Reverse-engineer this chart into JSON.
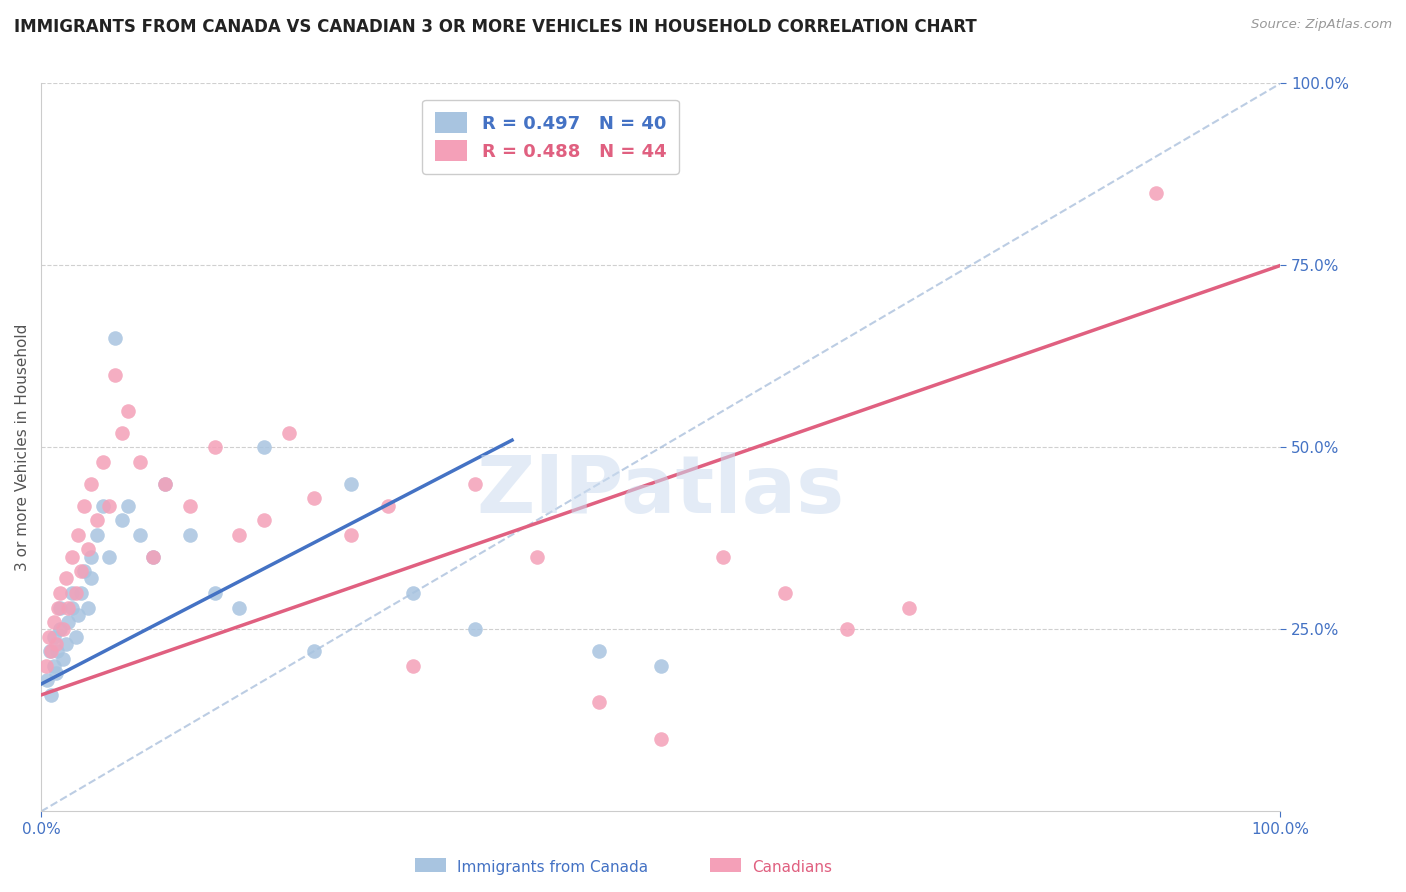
{
  "title": "IMMIGRANTS FROM CANADA VS CANADIAN 3 OR MORE VEHICLES IN HOUSEHOLD CORRELATION CHART",
  "source": "Source: ZipAtlas.com",
  "ylabel": "3 or more Vehicles in Household",
  "watermark": "ZIPatlas",
  "blue_R": 0.497,
  "blue_N": 40,
  "pink_R": 0.488,
  "pink_N": 44,
  "blue_color": "#a8c4e0",
  "pink_color": "#f4a0b8",
  "blue_line_color": "#4472c4",
  "pink_line_color": "#e06080",
  "diagonal_color": "#a0b8d8",
  "title_color": "#222222",
  "axis_label_color": "#555555",
  "tick_color": "#4472c4",
  "xlim": [
    0,
    1
  ],
  "ylim": [
    0,
    1
  ],
  "ytick_positions": [
    0.25,
    0.5,
    0.75,
    1.0
  ],
  "ytick_labels": [
    "25.0%",
    "50.0%",
    "75.0%",
    "100.0%"
  ],
  "blue_scatter_x": [
    0.005,
    0.007,
    0.008,
    0.01,
    0.01,
    0.012,
    0.013,
    0.015,
    0.015,
    0.018,
    0.02,
    0.022,
    0.025,
    0.025,
    0.028,
    0.03,
    0.032,
    0.035,
    0.038,
    0.04,
    0.04,
    0.045,
    0.05,
    0.055,
    0.06,
    0.065,
    0.07,
    0.08,
    0.09,
    0.1,
    0.12,
    0.14,
    0.16,
    0.18,
    0.22,
    0.25,
    0.3,
    0.35,
    0.45,
    0.5
  ],
  "blue_scatter_y": [
    0.18,
    0.22,
    0.16,
    0.2,
    0.24,
    0.19,
    0.22,
    0.25,
    0.28,
    0.21,
    0.23,
    0.26,
    0.28,
    0.3,
    0.24,
    0.27,
    0.3,
    0.33,
    0.28,
    0.32,
    0.35,
    0.38,
    0.42,
    0.35,
    0.65,
    0.4,
    0.42,
    0.38,
    0.35,
    0.45,
    0.38,
    0.3,
    0.28,
    0.5,
    0.22,
    0.45,
    0.3,
    0.25,
    0.22,
    0.2
  ],
  "pink_scatter_x": [
    0.004,
    0.006,
    0.008,
    0.01,
    0.012,
    0.014,
    0.015,
    0.018,
    0.02,
    0.022,
    0.025,
    0.028,
    0.03,
    0.032,
    0.035,
    0.038,
    0.04,
    0.045,
    0.05,
    0.055,
    0.06,
    0.065,
    0.07,
    0.08,
    0.09,
    0.1,
    0.12,
    0.14,
    0.16,
    0.18,
    0.2,
    0.22,
    0.25,
    0.28,
    0.3,
    0.35,
    0.4,
    0.45,
    0.5,
    0.55,
    0.6,
    0.65,
    0.7,
    0.9
  ],
  "pink_scatter_y": [
    0.2,
    0.24,
    0.22,
    0.26,
    0.23,
    0.28,
    0.3,
    0.25,
    0.32,
    0.28,
    0.35,
    0.3,
    0.38,
    0.33,
    0.42,
    0.36,
    0.45,
    0.4,
    0.48,
    0.42,
    0.6,
    0.52,
    0.55,
    0.48,
    0.35,
    0.45,
    0.42,
    0.5,
    0.38,
    0.4,
    0.52,
    0.43,
    0.38,
    0.42,
    0.2,
    0.45,
    0.35,
    0.15,
    0.1,
    0.35,
    0.3,
    0.25,
    0.28,
    0.85
  ],
  "blue_line_x": [
    0.0,
    0.38
  ],
  "blue_line_y": [
    0.175,
    0.51
  ],
  "pink_line_x": [
    0.0,
    1.0
  ],
  "pink_line_y": [
    0.16,
    0.75
  ],
  "diag_line_x": [
    0.0,
    1.0
  ],
  "diag_line_y": [
    0.0,
    1.0
  ]
}
